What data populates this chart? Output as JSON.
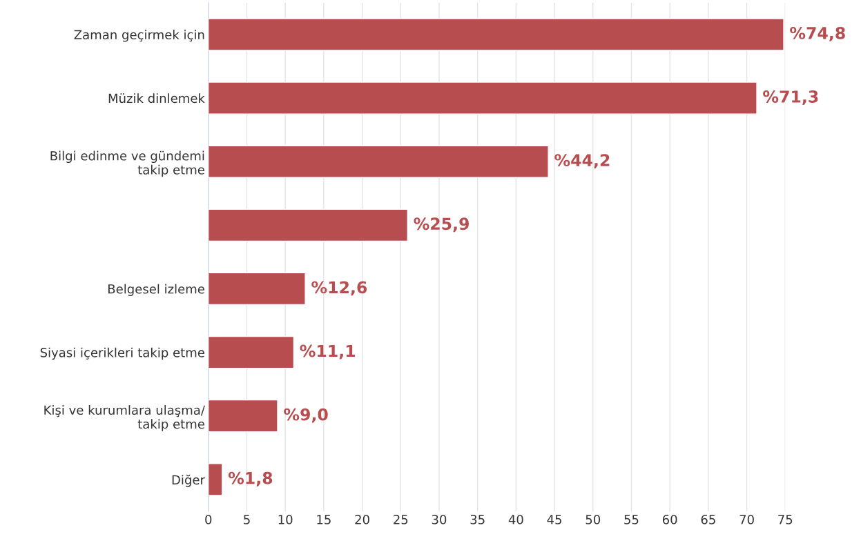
{
  "chart_data": {
    "type": "bar",
    "orientation": "horizontal",
    "categories": [
      "Zaman geçirmek için",
      "Müzik dinlemek",
      "Bilgi edinme ve gündemi\ntakip etme",
      null,
      "Belgesel izleme",
      "Siyasi içerikleri takip etme",
      "Kişi ve kurumlara ulaşma/\ntakip etme",
      "Diğer"
    ],
    "values": [
      74.8,
      71.3,
      44.2,
      25.9,
      12.6,
      11.1,
      9.0,
      1.8
    ],
    "value_labels": [
      "%74,8",
      "%71,3",
      "%44,2",
      "%25,9",
      "%12,6",
      "%11,1",
      "%9,0",
      "%1,8"
    ],
    "color": "#b84d50",
    "xlim": [
      0,
      75
    ],
    "xticks": [
      0,
      5,
      10,
      15,
      20,
      25,
      30,
      35,
      40,
      45,
      50,
      55,
      60,
      65,
      70,
      75
    ],
    "grid": "x",
    "legend": false
  }
}
